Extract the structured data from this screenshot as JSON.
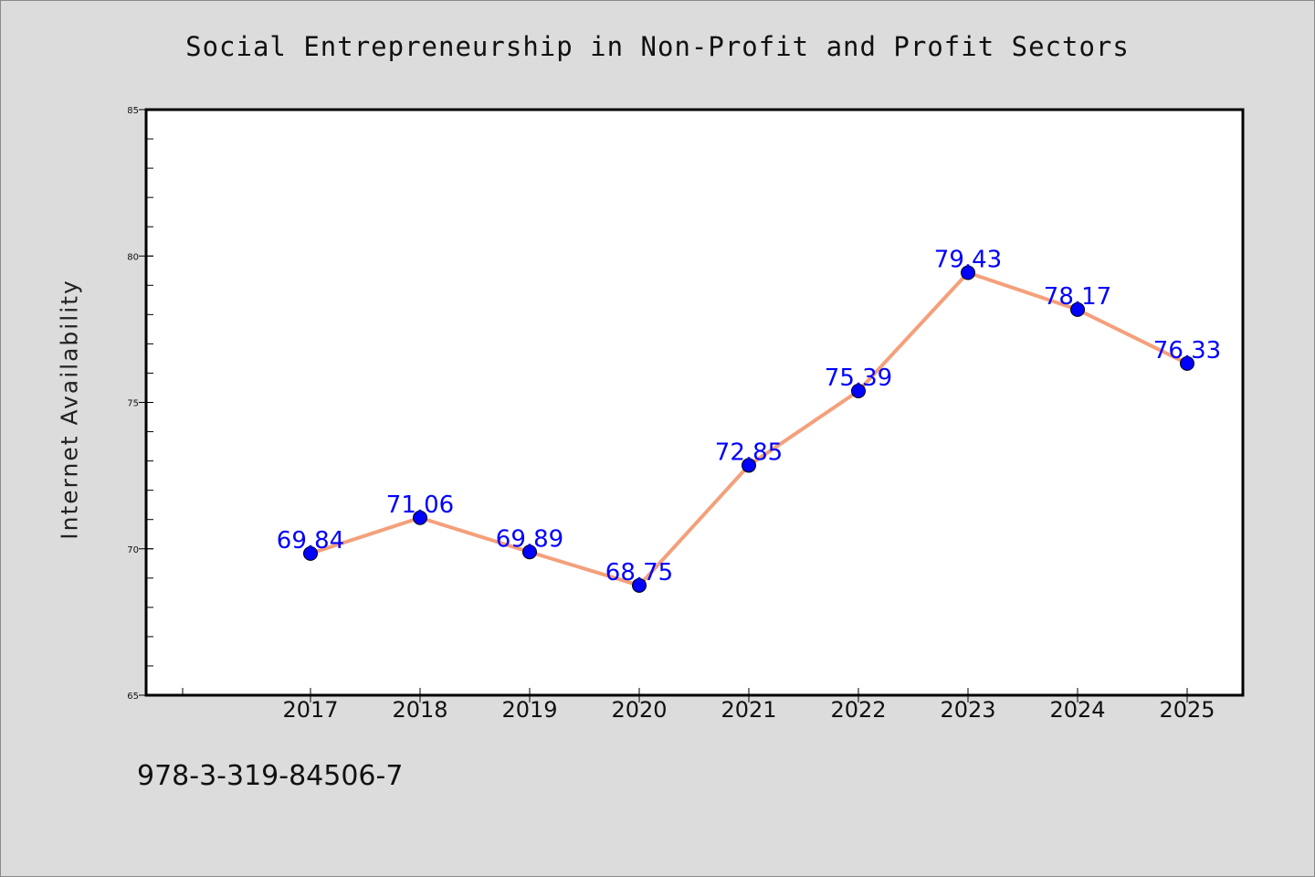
{
  "chart_data": {
    "type": "line",
    "title": "Social Entrepreneurship in Non-Profit and Profit Sectors",
    "xlabel": "",
    "ylabel": "Internet Availability",
    "x": [
      "2017",
      "2018",
      "2019",
      "2020",
      "2021",
      "2022",
      "2023",
      "2024",
      "2025"
    ],
    "values": [
      69.84,
      71.06,
      69.89,
      68.75,
      72.85,
      75.39,
      79.43,
      78.17,
      76.33
    ],
    "data_labels": [
      "69.84",
      "71.06",
      "69.89",
      "68.75",
      "72.85",
      "75.39",
      "79.43",
      "78.17",
      "76.33"
    ],
    "ylim": [
      65,
      85
    ],
    "yticks": [
      "65",
      "70",
      "75",
      "80",
      "85"
    ],
    "grid": false,
    "colors": {
      "line": "#f4a07a",
      "marker": "#0000ff",
      "label": "#0000ff",
      "background": "#dcdcdc",
      "plot_background": "#ffffff"
    }
  },
  "footer": {
    "isbn": "978-3-319-84506-7"
  }
}
